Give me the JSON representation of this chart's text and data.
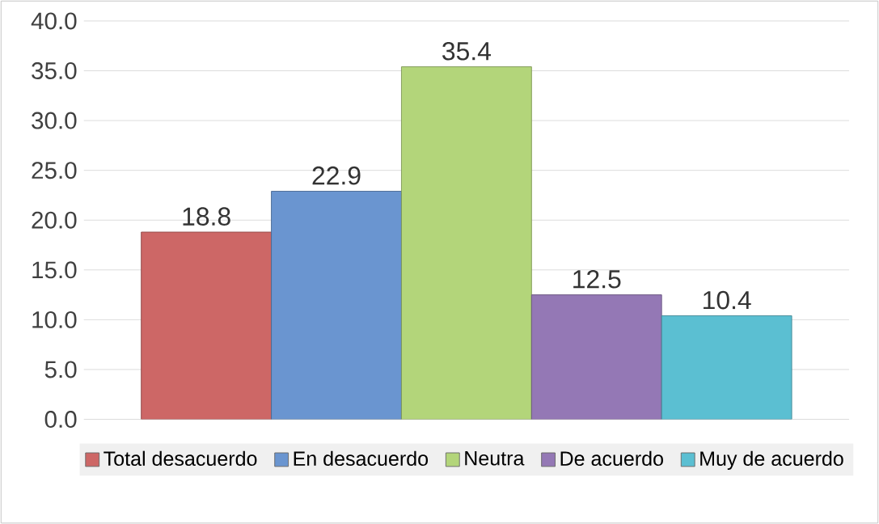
{
  "chart_data": {
    "type": "bar",
    "categories": [
      null
    ],
    "series": [
      {
        "name": "Total desacuerdo",
        "color": "#cd6766",
        "values": [
          18.8
        ]
      },
      {
        "name": "En desacuerdo",
        "color": "#6a95d0",
        "values": [
          22.9
        ]
      },
      {
        "name": "Neutra",
        "color": "#b3d57a",
        "values": [
          35.4
        ]
      },
      {
        "name": "De acuerdo",
        "color": "#9478b5",
        "values": [
          12.5
        ]
      },
      {
        "name": "Muy de acuerdo",
        "color": "#5bbfd2",
        "values": [
          10.4
        ]
      }
    ],
    "ylim": [
      0,
      40
    ],
    "yticks": [
      {
        "value": 0,
        "label": "0.0"
      },
      {
        "value": 5,
        "label": "5.0"
      },
      {
        "value": 10,
        "label": "10.0"
      },
      {
        "value": 15,
        "label": "15.0"
      },
      {
        "value": 20,
        "label": "20.0"
      },
      {
        "value": 25,
        "label": "25.0"
      },
      {
        "value": 30,
        "label": "30.0"
      },
      {
        "value": 35,
        "label": "35.0"
      },
      {
        "value": 40,
        "label": "40.0"
      }
    ],
    "grid": "y",
    "legend": "bottom",
    "data_labels": true
  }
}
